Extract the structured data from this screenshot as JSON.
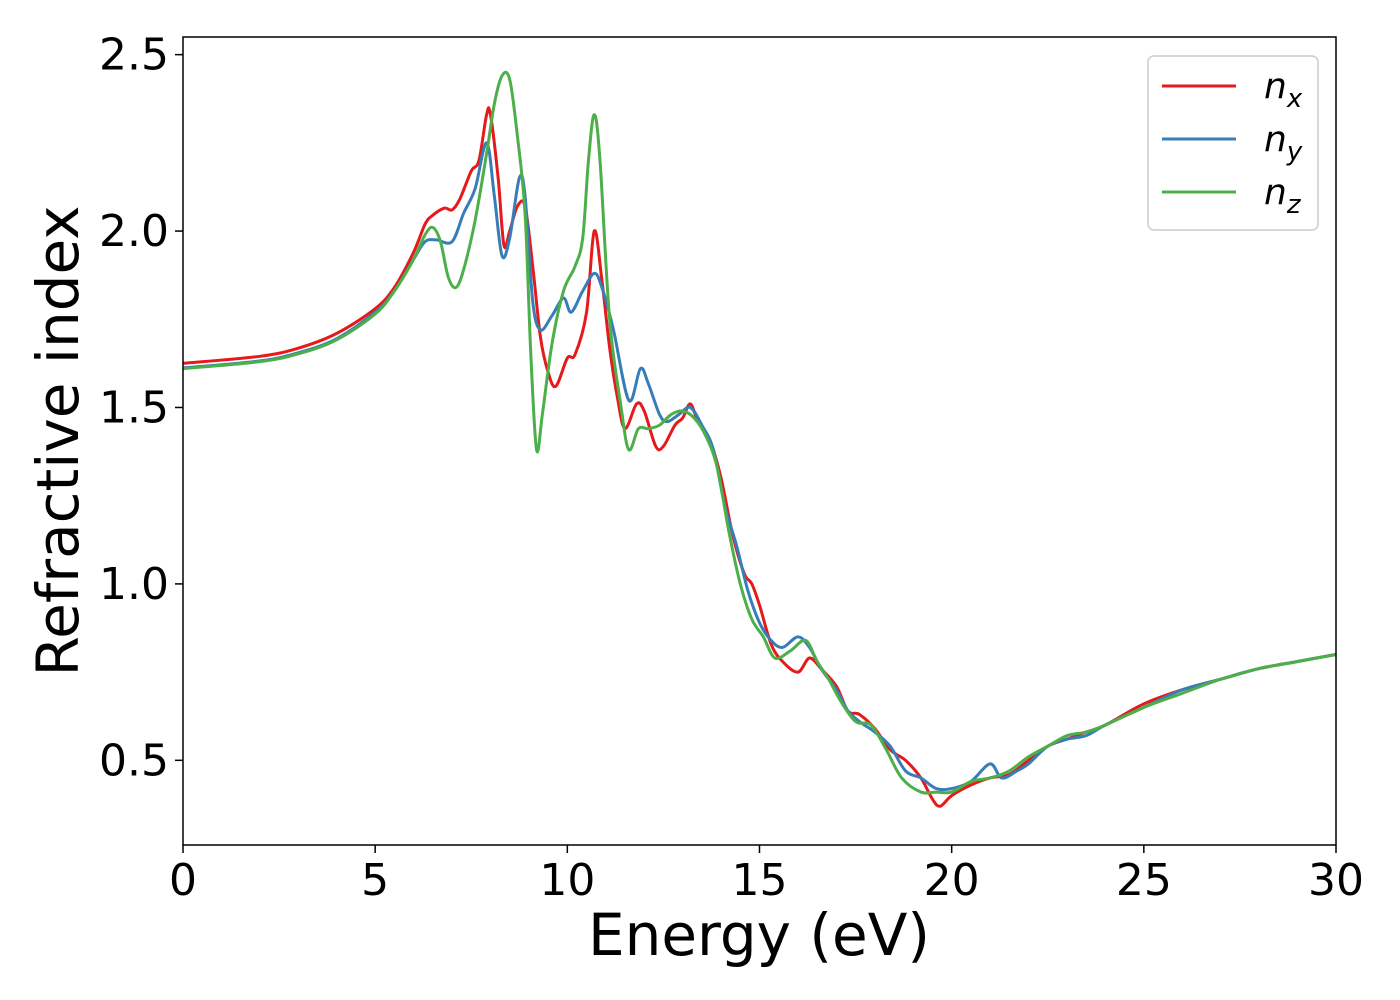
{
  "chart_data": {
    "type": "line",
    "xlabel": "Energy (eV)",
    "ylabel": "Refractive index",
    "xlim": [
      0,
      30
    ],
    "ylim": [
      0.26,
      2.55
    ],
    "xticks": [
      "0",
      "5",
      "10",
      "15",
      "20",
      "25",
      "30"
    ],
    "yticks": [
      "0.5",
      "1.0",
      "1.5",
      "2.0",
      "2.5"
    ],
    "grid": false,
    "legend_position": "top-right",
    "series": [
      {
        "name": "n_x",
        "label_base": "n",
        "label_sub": "x",
        "color": "#e41a1c",
        "points": [
          [
            0,
            1.625
          ],
          [
            2,
            1.645
          ],
          [
            3,
            1.668
          ],
          [
            4,
            1.71
          ],
          [
            5,
            1.78
          ],
          [
            5.5,
            1.84
          ],
          [
            6,
            1.94
          ],
          [
            6.3,
            2.02
          ],
          [
            6.5,
            2.045
          ],
          [
            6.8,
            2.065
          ],
          [
            7,
            2.06
          ],
          [
            7.2,
            2.09
          ],
          [
            7.5,
            2.17
          ],
          [
            7.7,
            2.2
          ],
          [
            7.9,
            2.33
          ],
          [
            8,
            2.33
          ],
          [
            8.2,
            2.15
          ],
          [
            8.35,
            1.96
          ],
          [
            8.5,
            2.0
          ],
          [
            8.7,
            2.07
          ],
          [
            8.9,
            2.07
          ],
          [
            9.1,
            1.9
          ],
          [
            9.3,
            1.7
          ],
          [
            9.5,
            1.6
          ],
          [
            9.7,
            1.56
          ],
          [
            10,
            1.64
          ],
          [
            10.2,
            1.65
          ],
          [
            10.5,
            1.77
          ],
          [
            10.7,
            2.0
          ],
          [
            10.9,
            1.86
          ],
          [
            11.1,
            1.67
          ],
          [
            11.3,
            1.53
          ],
          [
            11.5,
            1.44
          ],
          [
            11.8,
            1.51
          ],
          [
            12,
            1.49
          ],
          [
            12.3,
            1.39
          ],
          [
            12.5,
            1.39
          ],
          [
            12.8,
            1.45
          ],
          [
            13,
            1.47
          ],
          [
            13.2,
            1.51
          ],
          [
            13.4,
            1.46
          ],
          [
            13.7,
            1.41
          ],
          [
            14,
            1.3
          ],
          [
            14.3,
            1.14
          ],
          [
            14.6,
            1.03
          ],
          [
            14.8,
            1.0
          ],
          [
            15,
            0.94
          ],
          [
            15.3,
            0.83
          ],
          [
            15.6,
            0.78
          ],
          [
            16,
            0.75
          ],
          [
            16.3,
            0.79
          ],
          [
            16.6,
            0.76
          ],
          [
            17,
            0.71
          ],
          [
            17.3,
            0.64
          ],
          [
            17.6,
            0.63
          ],
          [
            18,
            0.59
          ],
          [
            18.4,
            0.53
          ],
          [
            18.8,
            0.5
          ],
          [
            19.2,
            0.45
          ],
          [
            19.5,
            0.39
          ],
          [
            19.7,
            0.37
          ],
          [
            20,
            0.4
          ],
          [
            20.5,
            0.43
          ],
          [
            21,
            0.45
          ],
          [
            21.5,
            0.46
          ],
          [
            22,
            0.5
          ],
          [
            22.5,
            0.54
          ],
          [
            23,
            0.56
          ],
          [
            23.5,
            0.58
          ],
          [
            24,
            0.6
          ],
          [
            25,
            0.66
          ],
          [
            26,
            0.7
          ],
          [
            27,
            0.73
          ],
          [
            28,
            0.76
          ],
          [
            29,
            0.78
          ],
          [
            30,
            0.8
          ]
        ]
      },
      {
        "name": "n_y",
        "label_base": "n",
        "label_sub": "y",
        "color": "#377eb8",
        "points": [
          [
            0,
            1.612
          ],
          [
            2,
            1.632
          ],
          [
            3,
            1.655
          ],
          [
            4,
            1.695
          ],
          [
            5,
            1.77
          ],
          [
            5.5,
            1.83
          ],
          [
            6,
            1.92
          ],
          [
            6.3,
            1.97
          ],
          [
            6.6,
            1.975
          ],
          [
            7,
            1.97
          ],
          [
            7.3,
            2.05
          ],
          [
            7.6,
            2.12
          ],
          [
            7.9,
            2.25
          ],
          [
            8.1,
            2.1
          ],
          [
            8.3,
            1.93
          ],
          [
            8.5,
            1.98
          ],
          [
            8.75,
            2.15
          ],
          [
            8.9,
            2.1
          ],
          [
            9.1,
            1.8
          ],
          [
            9.3,
            1.72
          ],
          [
            9.6,
            1.76
          ],
          [
            9.9,
            1.81
          ],
          [
            10.1,
            1.77
          ],
          [
            10.4,
            1.83
          ],
          [
            10.7,
            1.88
          ],
          [
            10.9,
            1.84
          ],
          [
            11.2,
            1.72
          ],
          [
            11.6,
            1.52
          ],
          [
            11.9,
            1.61
          ],
          [
            12.1,
            1.57
          ],
          [
            12.4,
            1.48
          ],
          [
            12.6,
            1.46
          ],
          [
            12.9,
            1.48
          ],
          [
            13.2,
            1.5
          ],
          [
            13.5,
            1.45
          ],
          [
            13.8,
            1.38
          ],
          [
            14.1,
            1.22
          ],
          [
            14.4,
            1.11
          ],
          [
            14.7,
            0.98
          ],
          [
            15,
            0.89
          ],
          [
            15.3,
            0.84
          ],
          [
            15.6,
            0.82
          ],
          [
            16,
            0.85
          ],
          [
            16.3,
            0.82
          ],
          [
            16.6,
            0.76
          ],
          [
            17,
            0.7
          ],
          [
            17.3,
            0.64
          ],
          [
            17.6,
            0.61
          ],
          [
            18,
            0.58
          ],
          [
            18.4,
            0.54
          ],
          [
            18.8,
            0.47
          ],
          [
            19.2,
            0.45
          ],
          [
            19.6,
            0.42
          ],
          [
            20,
            0.42
          ],
          [
            20.5,
            0.44
          ],
          [
            21,
            0.49
          ],
          [
            21.3,
            0.45
          ],
          [
            21.7,
            0.47
          ],
          [
            22,
            0.49
          ],
          [
            22.5,
            0.54
          ],
          [
            23,
            0.56
          ],
          [
            23.5,
            0.57
          ],
          [
            24,
            0.6
          ],
          [
            25,
            0.65
          ],
          [
            26,
            0.7
          ],
          [
            27,
            0.73
          ],
          [
            28,
            0.76
          ],
          [
            29,
            0.78
          ],
          [
            30,
            0.8
          ]
        ]
      },
      {
        "name": "n_z",
        "label_base": "n",
        "label_sub": "z",
        "color": "#4daf4a",
        "points": [
          [
            0,
            1.61
          ],
          [
            2,
            1.63
          ],
          [
            3,
            1.652
          ],
          [
            4,
            1.692
          ],
          [
            5,
            1.765
          ],
          [
            5.5,
            1.83
          ],
          [
            6,
            1.92
          ],
          [
            6.3,
            1.99
          ],
          [
            6.5,
            2.01
          ],
          [
            6.7,
            1.97
          ],
          [
            6.9,
            1.87
          ],
          [
            7.1,
            1.84
          ],
          [
            7.3,
            1.89
          ],
          [
            7.6,
            2.03
          ],
          [
            7.9,
            2.22
          ],
          [
            8.1,
            2.36
          ],
          [
            8.3,
            2.44
          ],
          [
            8.5,
            2.43
          ],
          [
            8.7,
            2.27
          ],
          [
            8.9,
            2.05
          ],
          [
            9.05,
            1.65
          ],
          [
            9.2,
            1.38
          ],
          [
            9.35,
            1.48
          ],
          [
            9.6,
            1.68
          ],
          [
            9.9,
            1.83
          ],
          [
            10.2,
            1.9
          ],
          [
            10.4,
            1.98
          ],
          [
            10.55,
            2.2
          ],
          [
            10.7,
            2.33
          ],
          [
            10.85,
            2.2
          ],
          [
            11.1,
            1.75
          ],
          [
            11.4,
            1.5
          ],
          [
            11.6,
            1.38
          ],
          [
            11.85,
            1.44
          ],
          [
            12.1,
            1.44
          ],
          [
            12.4,
            1.45
          ],
          [
            12.7,
            1.48
          ],
          [
            13,
            1.49
          ],
          [
            13.3,
            1.47
          ],
          [
            13.6,
            1.42
          ],
          [
            13.9,
            1.33
          ],
          [
            14.2,
            1.15
          ],
          [
            14.5,
            1.0
          ],
          [
            14.8,
            0.9
          ],
          [
            15.1,
            0.85
          ],
          [
            15.4,
            0.79
          ],
          [
            15.8,
            0.81
          ],
          [
            16.2,
            0.84
          ],
          [
            16.5,
            0.78
          ],
          [
            16.8,
            0.73
          ],
          [
            17.1,
            0.67
          ],
          [
            17.5,
            0.61
          ],
          [
            17.9,
            0.6
          ],
          [
            18.3,
            0.53
          ],
          [
            18.7,
            0.45
          ],
          [
            19.2,
            0.41
          ],
          [
            19.6,
            0.41
          ],
          [
            20,
            0.41
          ],
          [
            20.5,
            0.44
          ],
          [
            21,
            0.45
          ],
          [
            21.5,
            0.47
          ],
          [
            22,
            0.51
          ],
          [
            22.5,
            0.54
          ],
          [
            23,
            0.57
          ],
          [
            23.5,
            0.58
          ],
          [
            24,
            0.6
          ],
          [
            25,
            0.65
          ],
          [
            26,
            0.69
          ],
          [
            27,
            0.73
          ],
          [
            28,
            0.76
          ],
          [
            29,
            0.78
          ],
          [
            30,
            0.8
          ]
        ]
      }
    ]
  }
}
